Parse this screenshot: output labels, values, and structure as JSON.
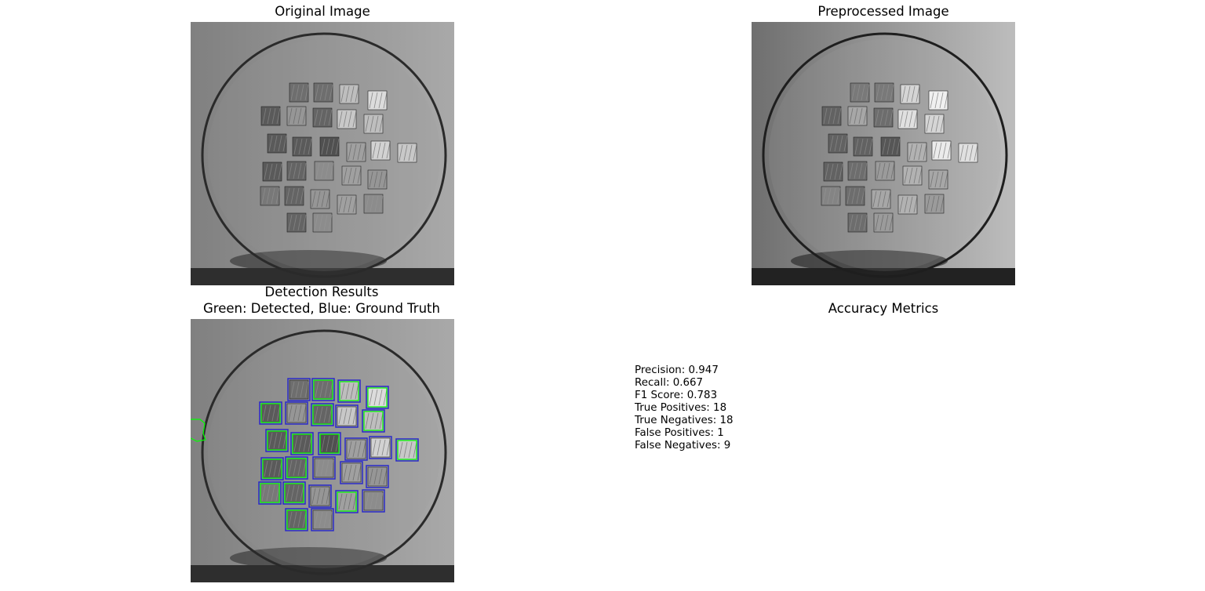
{
  "panels": {
    "original": {
      "title": "Original Image"
    },
    "preprocessed": {
      "title": "Preprocessed Image"
    },
    "detection": {
      "title_line1": "Detection Results",
      "title_line2": "Green: Detected, Blue: Ground Truth"
    },
    "metrics": {
      "title": "Accuracy Metrics",
      "items": [
        "Precision: 0.947",
        "Recall: 0.667",
        "F1 Score: 0.783",
        "True Positives: 18",
        "True Negatives: 18",
        "False Positives: 1",
        "False Negatives: 9"
      ]
    }
  },
  "colors": {
    "detected": "#00ff00",
    "ground_truth": "#2a2ac8"
  }
}
